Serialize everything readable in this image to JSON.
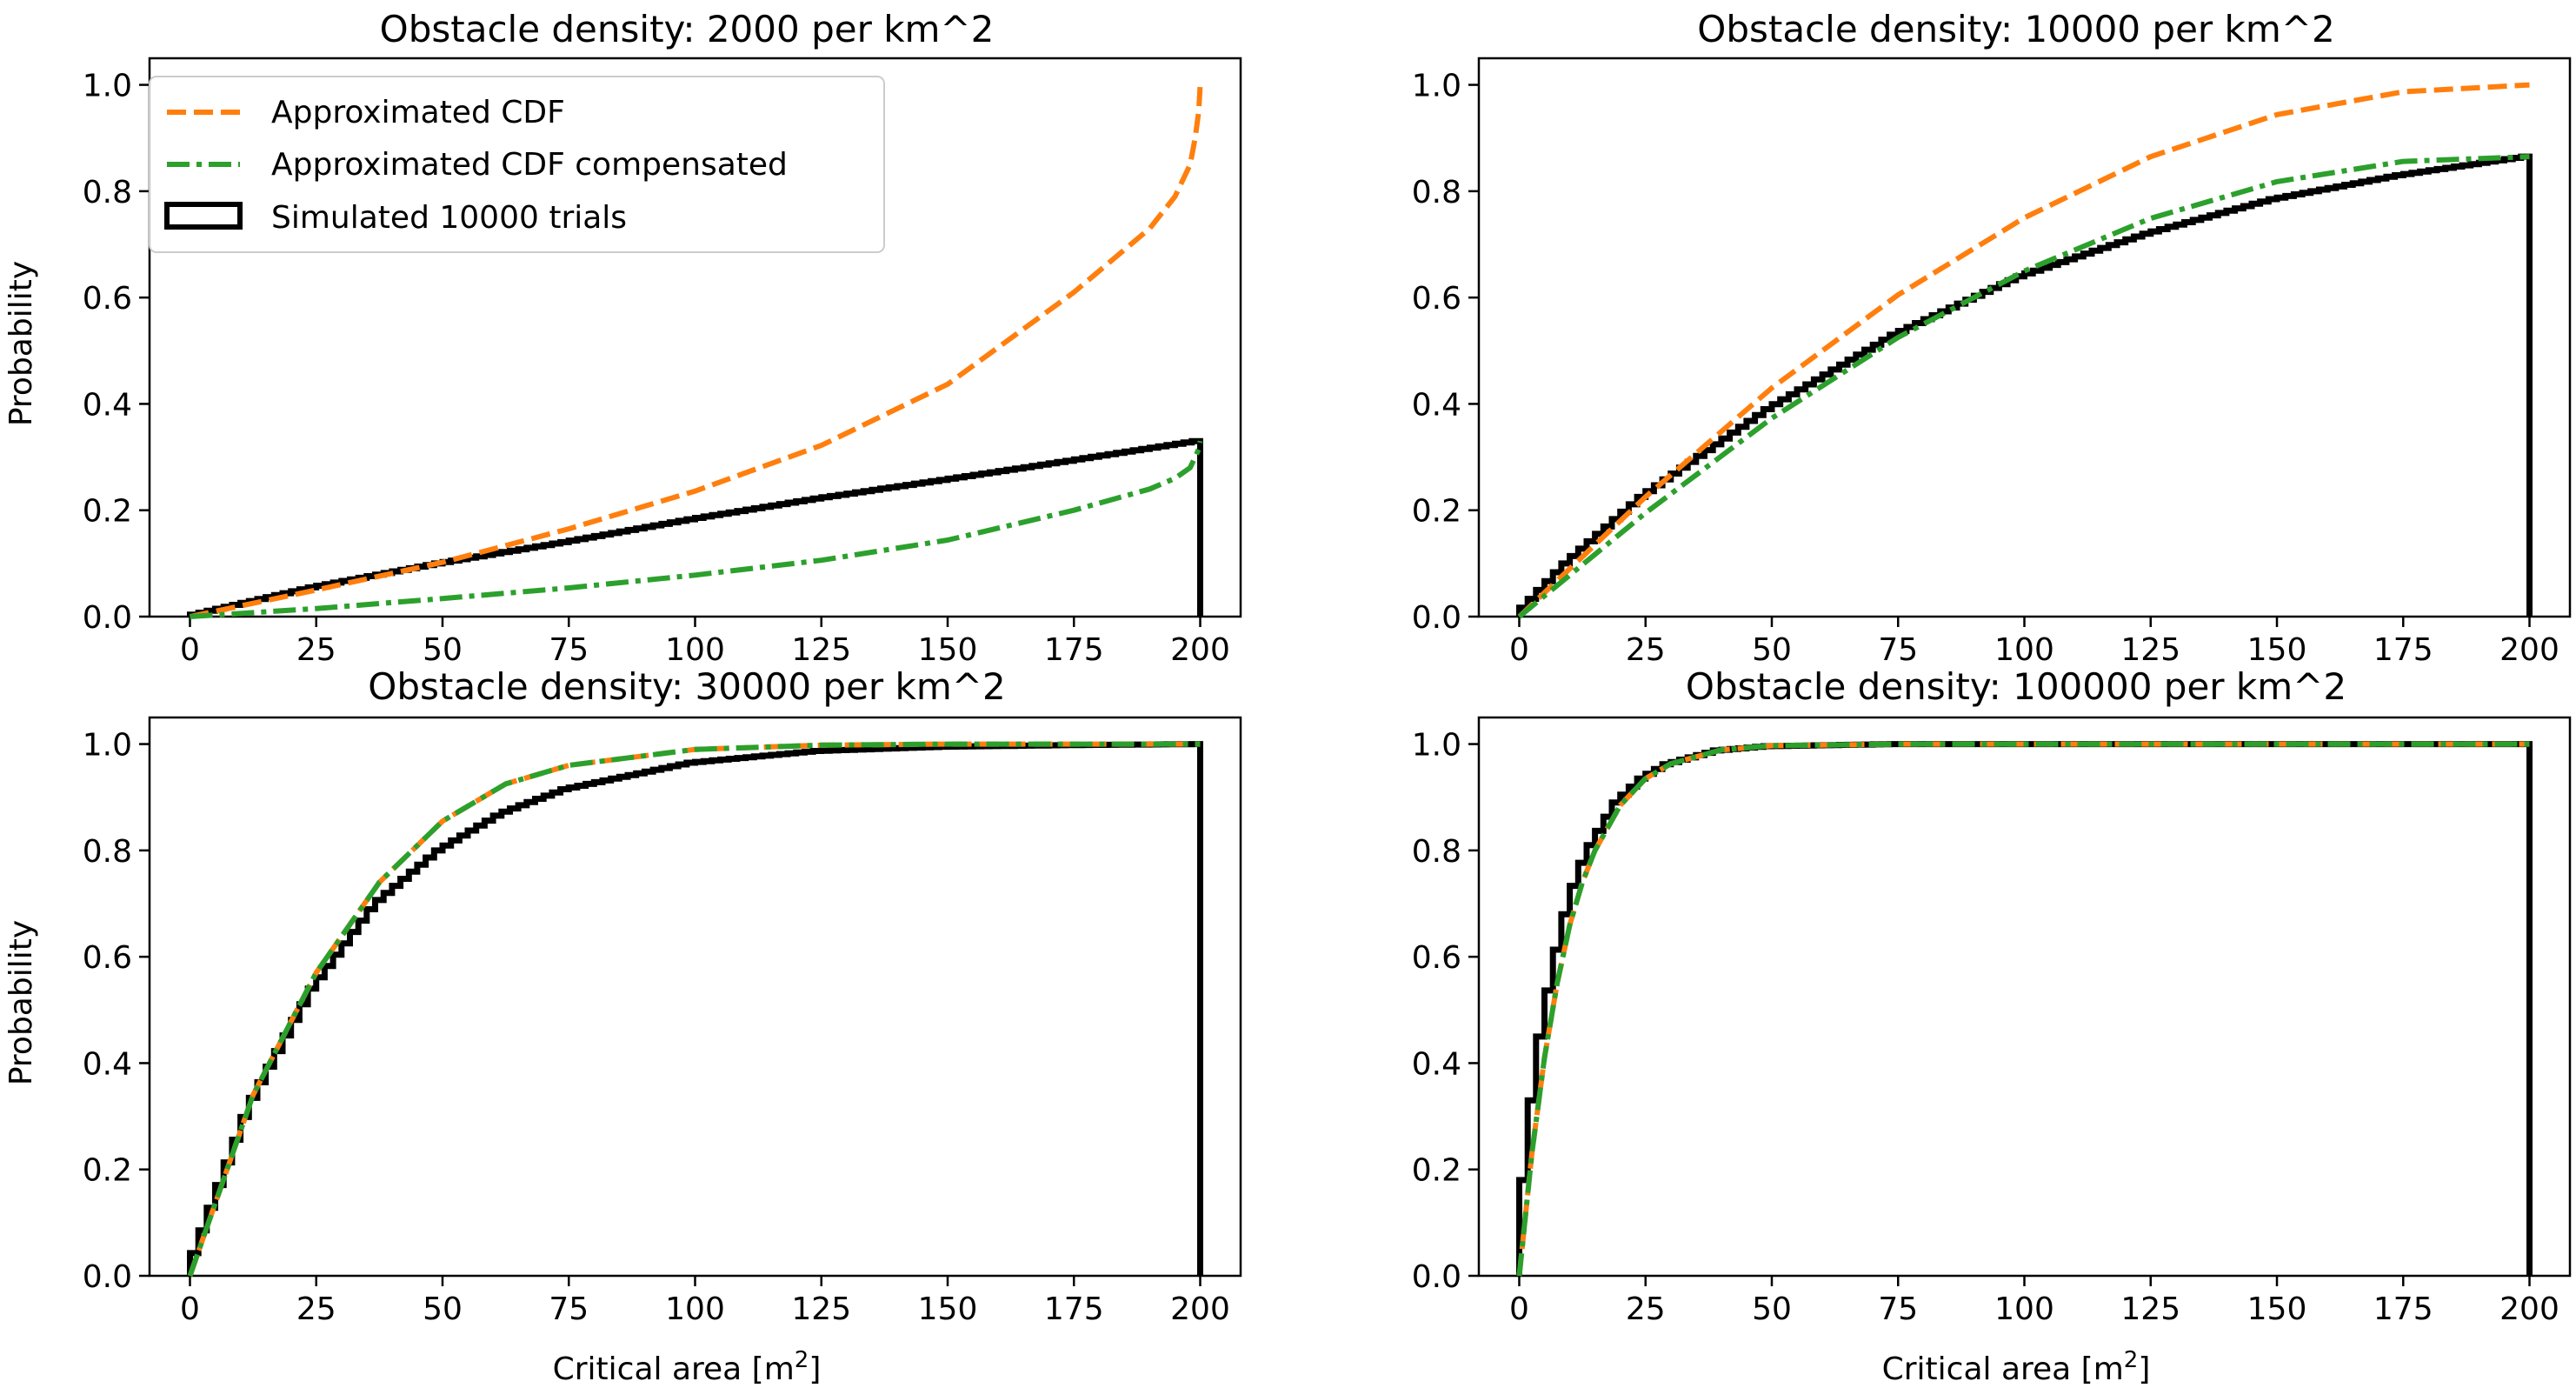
{
  "figure": {
    "background": "#ffffff"
  },
  "legend": {
    "placement": "upper-left of top-left panel",
    "items": [
      {
        "label": "Approximated CDF",
        "color": "#ff7f0e",
        "style": "dashed"
      },
      {
        "label": "Approximated CDF compensated",
        "color": "#2ca02c",
        "style": "dash-dot"
      },
      {
        "label": "Simulated 10000 trials",
        "color": "#000000",
        "style": "step-histogram"
      }
    ]
  },
  "chart_data": [
    {
      "type": "line",
      "title": "Obstacle density: 2000 per km^2",
      "xlabel": "",
      "ylabel": "Probability",
      "xlim": [
        -8,
        208
      ],
      "ylim": [
        0,
        1.05
      ],
      "xticks": [
        "0",
        "25",
        "50",
        "75",
        "100",
        "125",
        "150",
        "175",
        "200"
      ],
      "yticks": [
        "0.0",
        "0.2",
        "0.4",
        "0.6",
        "0.8",
        "1.0"
      ],
      "grid": false,
      "legend": true,
      "series": [
        {
          "name": "Approximated CDF",
          "style": "dashed",
          "color": "#ff7f0e",
          "x": [
            0,
            25,
            50,
            75,
            100,
            125,
            150,
            175,
            190,
            195,
            198,
            199,
            199.7,
            200
          ],
          "y": [
            0,
            0.05,
            0.102,
            0.165,
            0.236,
            0.322,
            0.437,
            0.61,
            0.73,
            0.79,
            0.85,
            0.9,
            0.95,
            1.0
          ]
        },
        {
          "name": "Approximated CDF compensated",
          "style": "dash-dot",
          "color": "#2ca02c",
          "x": [
            0,
            25,
            50,
            75,
            100,
            125,
            150,
            175,
            190,
            195,
            198,
            199,
            199.7,
            200
          ],
          "y": [
            0,
            0.015,
            0.034,
            0.054,
            0.078,
            0.106,
            0.144,
            0.2,
            0.24,
            0.26,
            0.28,
            0.3,
            0.315,
            0.33
          ]
        },
        {
          "name": "Simulated 10000 trials",
          "style": "step",
          "color": "#000000",
          "x": [
            0,
            25,
            50,
            75,
            100,
            125,
            150,
            175,
            200
          ],
          "y": [
            0,
            0.055,
            0.1,
            0.14,
            0.183,
            0.222,
            0.257,
            0.293,
            0.33
          ]
        }
      ]
    },
    {
      "type": "line",
      "title": "Obstacle density: 10000 per km^2",
      "xlabel": "",
      "ylabel": "",
      "xlim": [
        -8,
        208
      ],
      "ylim": [
        0,
        1.05
      ],
      "xticks": [
        "0",
        "25",
        "50",
        "75",
        "100",
        "125",
        "150",
        "175",
        "200"
      ],
      "yticks": [
        "0.0",
        "0.2",
        "0.4",
        "0.6",
        "0.8",
        "1.0"
      ],
      "grid": false,
      "legend": false,
      "series": [
        {
          "name": "Approximated CDF",
          "style": "dashed",
          "color": "#ff7f0e",
          "x": [
            0,
            25,
            50,
            75,
            100,
            125,
            150,
            175,
            200
          ],
          "y": [
            0,
            0.225,
            0.43,
            0.605,
            0.75,
            0.865,
            0.944,
            0.987,
            1.0
          ]
        },
        {
          "name": "Approximated CDF compensated",
          "style": "dash-dot",
          "color": "#2ca02c",
          "x": [
            0,
            25,
            50,
            75,
            100,
            125,
            150,
            175,
            200
          ],
          "y": [
            0,
            0.195,
            0.373,
            0.525,
            0.65,
            0.749,
            0.818,
            0.856,
            0.865
          ]
        },
        {
          "name": "Simulated 10000 trials",
          "style": "step",
          "color": "#000000",
          "x": [
            0,
            10,
            25,
            50,
            75,
            100,
            125,
            150,
            175,
            200
          ],
          "y": [
            0,
            0.1,
            0.225,
            0.39,
            0.53,
            0.64,
            0.72,
            0.785,
            0.83,
            0.865
          ]
        }
      ]
    },
    {
      "type": "line",
      "title": "Obstacle density: 30000 per km^2",
      "xlabel": "Critical area [m²]",
      "ylabel": "Probability",
      "xlim": [
        -8,
        208
      ],
      "ylim": [
        0,
        1.05
      ],
      "xticks": [
        "0",
        "25",
        "50",
        "75",
        "100",
        "125",
        "150",
        "175",
        "200"
      ],
      "yticks": [
        "0.0",
        "0.2",
        "0.4",
        "0.6",
        "0.8",
        "1.0"
      ],
      "grid": false,
      "legend": false,
      "series": [
        {
          "name": "Approximated CDF",
          "style": "dashed",
          "color": "#ff7f0e",
          "x": [
            0,
            12.5,
            25,
            37.5,
            50,
            62.5,
            75,
            100,
            125,
            150,
            175,
            200
          ],
          "y": [
            0,
            0.34,
            0.57,
            0.74,
            0.855,
            0.925,
            0.96,
            0.99,
            0.998,
            1.0,
            1.0,
            1.0
          ]
        },
        {
          "name": "Approximated CDF compensated",
          "style": "dash-dot",
          "color": "#2ca02c",
          "x": [
            0,
            12.5,
            25,
            37.5,
            50,
            62.5,
            75,
            100,
            125,
            150,
            175,
            200
          ],
          "y": [
            0,
            0.34,
            0.57,
            0.74,
            0.855,
            0.925,
            0.96,
            0.99,
            0.998,
            1.0,
            1.0,
            1.0
          ]
        },
        {
          "name": "Simulated 10000 trials",
          "style": "step",
          "color": "#000000",
          "x": [
            0,
            12.5,
            25,
            37.5,
            50,
            62.5,
            75,
            100,
            125,
            150,
            175,
            200
          ],
          "y": [
            0,
            0.32,
            0.54,
            0.7,
            0.8,
            0.87,
            0.915,
            0.965,
            0.987,
            0.995,
            0.998,
            1.0
          ]
        }
      ]
    },
    {
      "type": "line",
      "title": "Obstacle density: 100000 per km^2",
      "xlabel": "Critical area [m²]",
      "ylabel": "",
      "xlim": [
        -8,
        208
      ],
      "ylim": [
        0,
        1.05
      ],
      "xticks": [
        "0",
        "25",
        "50",
        "75",
        "100",
        "125",
        "150",
        "175",
        "200"
      ],
      "yticks": [
        "0.0",
        "0.2",
        "0.4",
        "0.6",
        "0.8",
        "1.0"
      ],
      "grid": false,
      "legend": false,
      "series": [
        {
          "name": "Approximated CDF",
          "style": "dashed",
          "color": "#ff7f0e",
          "x": [
            0,
            2.5,
            5,
            7.5,
            10,
            12.5,
            15,
            20,
            25,
            30,
            40,
            50,
            75,
            100,
            150,
            200
          ],
          "y": [
            0,
            0.23,
            0.41,
            0.55,
            0.66,
            0.74,
            0.8,
            0.885,
            0.935,
            0.963,
            0.989,
            0.997,
            1.0,
            1.0,
            1.0,
            1.0
          ]
        },
        {
          "name": "Approximated CDF compensated",
          "style": "dash-dot",
          "color": "#2ca02c",
          "x": [
            0,
            2.5,
            5,
            7.5,
            10,
            12.5,
            15,
            20,
            25,
            30,
            40,
            50,
            75,
            100,
            150,
            200
          ],
          "y": [
            0,
            0.23,
            0.41,
            0.55,
            0.66,
            0.74,
            0.8,
            0.885,
            0.935,
            0.963,
            0.989,
            0.997,
            1.0,
            1.0,
            1.0,
            1.0
          ]
        },
        {
          "name": "Simulated 10000 trials",
          "style": "step",
          "color": "#000000",
          "x": [
            0,
            2.5,
            5,
            7.5,
            10,
            12.5,
            15,
            20,
            25,
            30,
            40,
            50,
            75,
            100,
            150,
            200
          ],
          "y": [
            0,
            0.27,
            0.45,
            0.58,
            0.68,
            0.76,
            0.81,
            0.89,
            0.935,
            0.962,
            0.988,
            0.996,
            1.0,
            1.0,
            1.0,
            1.0
          ]
        }
      ]
    }
  ]
}
